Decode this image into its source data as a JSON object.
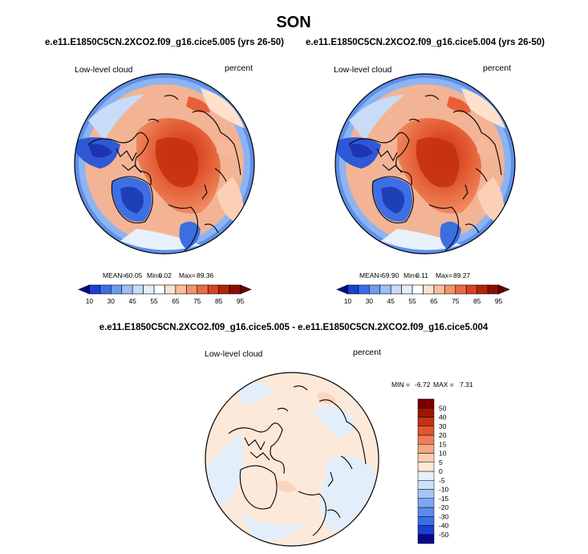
{
  "page_title": "SON",
  "chart_data": [
    {
      "type": "heatmap",
      "projection": "north polar stereographic",
      "title": "e.e11.E1850C5CN.2XCO2.f09_g16.cice5.005 (yrs 26-50)",
      "variable": "Low-level cloud",
      "units": "percent",
      "stats": {
        "mean_label": "MEAN=",
        "mean": "60.05",
        "min_label": "Min=",
        "min": "0.02",
        "max_label": "Max=",
        "max": "89.36"
      },
      "colorbar": {
        "orientation": "horizontal",
        "levels": [
          10,
          20,
          30,
          40,
          45,
          50,
          55,
          60,
          65,
          70,
          75,
          80,
          85,
          90,
          95
        ],
        "tick_labels": [
          "10",
          "30",
          "45",
          "55",
          "65",
          "75",
          "85",
          "95"
        ],
        "colors": [
          "#08088a",
          "#1b3fd0",
          "#3a6ee8",
          "#6c9cf0",
          "#9cc0f6",
          "#c6dcf8",
          "#e2eefa",
          "#ffffff",
          "#fde3cf",
          "#f9bf9d",
          "#f3946a",
          "#ea6a43",
          "#d8431f",
          "#b52409",
          "#8b0f03",
          "#6b0000"
        ]
      }
    },
    {
      "type": "heatmap",
      "projection": "north polar stereographic",
      "title": "e.e11.E1850C5CN.2XCO2.f09_g16.cice5.004 (yrs 26-50)",
      "variable": "Low-level cloud",
      "units": "percent",
      "stats": {
        "mean_label": "MEAN=",
        "mean": "59.90",
        "min_label": "Min=",
        "min": "0.11",
        "max_label": "Max=",
        "max": "89.27"
      },
      "colorbar": {
        "orientation": "horizontal",
        "levels": [
          10,
          20,
          30,
          40,
          45,
          50,
          55,
          60,
          65,
          70,
          75,
          80,
          85,
          90,
          95
        ],
        "tick_labels": [
          "10",
          "30",
          "45",
          "55",
          "65",
          "75",
          "85",
          "95"
        ],
        "colors": [
          "#08088a",
          "#1b3fd0",
          "#3a6ee8",
          "#6c9cf0",
          "#9cc0f6",
          "#c6dcf8",
          "#e2eefa",
          "#ffffff",
          "#fde3cf",
          "#f9bf9d",
          "#f3946a",
          "#ea6a43",
          "#d8431f",
          "#b52409",
          "#8b0f03",
          "#6b0000"
        ]
      }
    },
    {
      "type": "heatmap",
      "projection": "north polar stereographic",
      "title": "e.e11.E1850C5CN.2XCO2.f09_g16.cice5.005 - e.e11.E1850C5CN.2XCO2.f09_g16.cice5.004",
      "variable": "Low-level cloud",
      "units": "percent",
      "stats": {
        "min_label": "MIN =",
        "min": "-6.72",
        "max_label": "MAX =",
        "max": "7.31"
      },
      "colorbar": {
        "orientation": "vertical",
        "levels": [
          -50,
          -40,
          -30,
          -20,
          -15,
          -10,
          -5,
          0,
          5,
          10,
          15,
          20,
          30,
          40,
          50
        ],
        "tick_labels": [
          "-50",
          "-40",
          "-30",
          "-20",
          "-15",
          "-10",
          "-5",
          "0",
          "5",
          "10",
          "15",
          "20",
          "30",
          "40",
          "50"
        ],
        "colors": [
          "#08088a",
          "#1b3fd0",
          "#3a6ee8",
          "#5b8bec",
          "#7ea6f2",
          "#a7c4f6",
          "#cfe0f9",
          "#e6f0fb",
          "#fde7d6",
          "#fbcdb0",
          "#f5a785",
          "#ee7f5b",
          "#e05533",
          "#c33415",
          "#a01606",
          "#7a0000"
        ]
      }
    }
  ]
}
